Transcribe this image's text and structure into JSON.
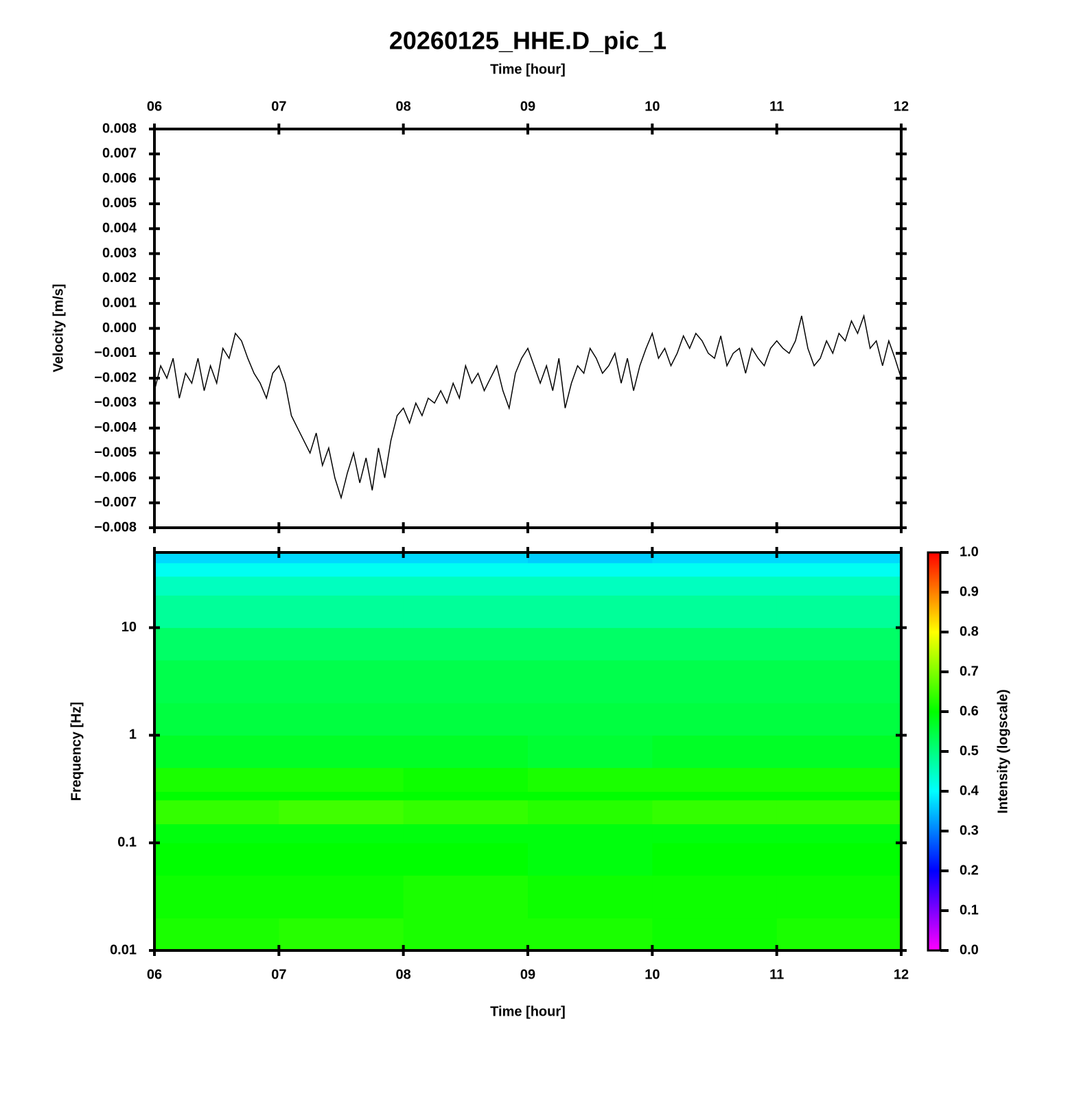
{
  "chart_data": [
    {
      "type": "line",
      "title": "20260125_HHE.D_pic_1",
      "x_label": "Time [hour]",
      "y_label": "Velocity [m/s]",
      "color": "#000000",
      "xlim": [
        6,
        12
      ],
      "xticks": [
        {
          "value": 6,
          "label": "06"
        },
        {
          "value": 7,
          "label": "07"
        },
        {
          "value": 8,
          "label": "08"
        },
        {
          "value": 9,
          "label": "09"
        },
        {
          "value": 10,
          "label": "10"
        },
        {
          "value": 11,
          "label": "11"
        },
        {
          "value": 12,
          "label": "12"
        }
      ],
      "ylim": [
        -0.008,
        0.008
      ],
      "yticks": [
        0.008,
        0.007,
        0.006,
        0.005,
        0.004,
        0.003,
        0.002,
        0.001,
        {
          "value": 0,
          "label": "0.000"
        },
        {
          "value": -0.001,
          "label": "−0.001"
        },
        {
          "value": -0.002,
          "label": "−0.002"
        },
        {
          "value": -0.003,
          "label": "−0.003"
        },
        {
          "value": -0.004,
          "label": "−0.004"
        },
        {
          "value": -0.005,
          "label": "−0.005"
        },
        {
          "value": -0.006,
          "label": "−0.006"
        },
        {
          "value": -0.007,
          "label": "−0.007"
        },
        {
          "value": -0.008,
          "label": "−0.008"
        }
      ],
      "x": [
        6.0,
        6.05,
        6.1,
        6.15,
        6.2,
        6.25,
        6.3,
        6.35,
        6.4,
        6.45,
        6.5,
        6.55,
        6.6,
        6.65,
        6.7,
        6.75,
        6.8,
        6.85,
        6.9,
        6.95,
        7.0,
        7.05,
        7.1,
        7.15,
        7.2,
        7.25,
        7.3,
        7.35,
        7.4,
        7.45,
        7.5,
        7.55,
        7.6,
        7.65,
        7.7,
        7.75,
        7.8,
        7.85,
        7.9,
        7.95,
        8.0,
        8.05,
        8.1,
        8.15,
        8.2,
        8.25,
        8.3,
        8.35,
        8.4,
        8.45,
        8.5,
        8.55,
        8.6,
        8.65,
        8.7,
        8.75,
        8.8,
        8.85,
        8.9,
        8.95,
        9.0,
        9.05,
        9.1,
        9.15,
        9.2,
        9.25,
        9.3,
        9.35,
        9.4,
        9.45,
        9.5,
        9.55,
        9.6,
        9.65,
        9.7,
        9.75,
        9.8,
        9.85,
        9.9,
        9.95,
        10.0,
        10.05,
        10.1,
        10.15,
        10.2,
        10.25,
        10.3,
        10.35,
        10.4,
        10.45,
        10.5,
        10.55,
        10.6,
        10.65,
        10.7,
        10.75,
        10.8,
        10.85,
        10.9,
        10.95,
        11.0,
        11.05,
        11.1,
        11.15,
        11.2,
        11.25,
        11.3,
        11.35,
        11.4,
        11.45,
        11.5,
        11.55,
        11.6,
        11.65,
        11.7,
        11.75,
        11.8,
        11.85,
        11.9,
        11.95,
        12.0
      ],
      "values": [
        -0.0025,
        -0.0015,
        -0.002,
        -0.0012,
        -0.0028,
        -0.0018,
        -0.0022,
        -0.0012,
        -0.0025,
        -0.0015,
        -0.0022,
        -0.0008,
        -0.0012,
        -0.0002,
        -0.0005,
        -0.0012,
        -0.0018,
        -0.0022,
        -0.0028,
        -0.0018,
        -0.0015,
        -0.0022,
        -0.0035,
        -0.004,
        -0.0045,
        -0.005,
        -0.0042,
        -0.0055,
        -0.0048,
        -0.006,
        -0.0068,
        -0.0058,
        -0.005,
        -0.0062,
        -0.0052,
        -0.0065,
        -0.0048,
        -0.006,
        -0.0045,
        -0.0035,
        -0.0032,
        -0.0038,
        -0.003,
        -0.0035,
        -0.0028,
        -0.003,
        -0.0025,
        -0.003,
        -0.0022,
        -0.0028,
        -0.0015,
        -0.0022,
        -0.0018,
        -0.0025,
        -0.002,
        -0.0015,
        -0.0025,
        -0.0032,
        -0.0018,
        -0.0012,
        -0.0008,
        -0.0015,
        -0.0022,
        -0.0015,
        -0.0025,
        -0.0012,
        -0.0032,
        -0.0022,
        -0.0015,
        -0.0018,
        -0.0008,
        -0.0012,
        -0.0018,
        -0.0015,
        -0.001,
        -0.0022,
        -0.0012,
        -0.0025,
        -0.0015,
        -0.0008,
        -0.0002,
        -0.0012,
        -0.0008,
        -0.0015,
        -0.001,
        -0.0003,
        -0.0008,
        -0.0002,
        -0.0005,
        -0.001,
        -0.0012,
        -0.0003,
        -0.0015,
        -0.001,
        -0.0008,
        -0.0018,
        -0.0008,
        -0.0012,
        -0.0015,
        -0.0008,
        -0.0005,
        -0.0008,
        -0.001,
        -0.0005,
        0.0005,
        -0.0008,
        -0.0015,
        -0.0012,
        -0.0005,
        -0.001,
        -0.0002,
        -0.0005,
        0.0003,
        -0.0002,
        0.0005,
        -0.0008,
        -0.0005,
        -0.0015,
        -0.0005,
        -0.0012,
        -0.002
      ]
    },
    {
      "type": "heatmap",
      "x_label": "Time [hour]",
      "y_label": "Frequency [Hz]",
      "yscale": "log",
      "xlim": [
        6,
        12
      ],
      "xticks": [
        {
          "value": 6,
          "label": "06"
        },
        {
          "value": 7,
          "label": "07"
        },
        {
          "value": 8,
          "label": "08"
        },
        {
          "value": 9,
          "label": "09"
        },
        {
          "value": 10,
          "label": "10"
        },
        {
          "value": 11,
          "label": "11"
        },
        {
          "value": 12,
          "label": "12"
        }
      ],
      "ylim": [
        0.01,
        50
      ],
      "yticks": [
        0.01,
        0.1,
        1,
        10
      ],
      "time_edges": [
        6,
        7,
        8,
        9,
        10,
        11,
        12
      ],
      "frequency_edges": [
        0.01,
        0.02,
        0.05,
        0.1,
        0.15,
        0.25,
        0.3,
        0.5,
        1,
        2,
        5,
        10,
        20,
        30,
        40,
        50
      ],
      "intensity": [
        [
          0.62,
          0.63,
          0.62,
          0.62,
          0.61,
          0.62
        ],
        [
          0.61,
          0.61,
          0.62,
          0.61,
          0.61,
          0.61
        ],
        [
          0.6,
          0.6,
          0.6,
          0.59,
          0.6,
          0.6
        ],
        [
          0.59,
          0.59,
          0.59,
          0.59,
          0.59,
          0.59
        ],
        [
          0.64,
          0.65,
          0.64,
          0.63,
          0.64,
          0.64
        ],
        [
          0.6,
          0.6,
          0.6,
          0.6,
          0.6,
          0.6
        ],
        [
          0.62,
          0.62,
          0.61,
          0.62,
          0.62,
          0.62
        ],
        [
          0.57,
          0.57,
          0.57,
          0.56,
          0.57,
          0.57
        ],
        [
          0.55,
          0.55,
          0.55,
          0.55,
          0.55,
          0.55
        ],
        [
          0.54,
          0.54,
          0.54,
          0.54,
          0.54,
          0.54
        ],
        [
          0.52,
          0.52,
          0.52,
          0.52,
          0.52,
          0.52
        ],
        [
          0.48,
          0.48,
          0.48,
          0.48,
          0.48,
          0.48
        ],
        [
          0.45,
          0.45,
          0.45,
          0.45,
          0.45,
          0.45
        ],
        [
          0.41,
          0.41,
          0.41,
          0.41,
          0.41,
          0.41
        ],
        [
          0.37,
          0.37,
          0.37,
          0.36,
          0.37,
          0.37
        ]
      ],
      "colormap": [
        "#ff00ff",
        "#0000ff",
        "#00ffff",
        "#00ff00",
        "#ffff00",
        "#ff0000"
      ],
      "colorbar": {
        "label": "Intensity (logscale)",
        "lim": [
          0,
          1
        ],
        "ticks": [
          {
            "value": 0,
            "label": "0.0"
          },
          0.1,
          0.2,
          0.3,
          0.4,
          0.5,
          0.6,
          0.7,
          0.8,
          0.9,
          {
            "value": 1,
            "label": "1.0"
          }
        ]
      }
    }
  ]
}
